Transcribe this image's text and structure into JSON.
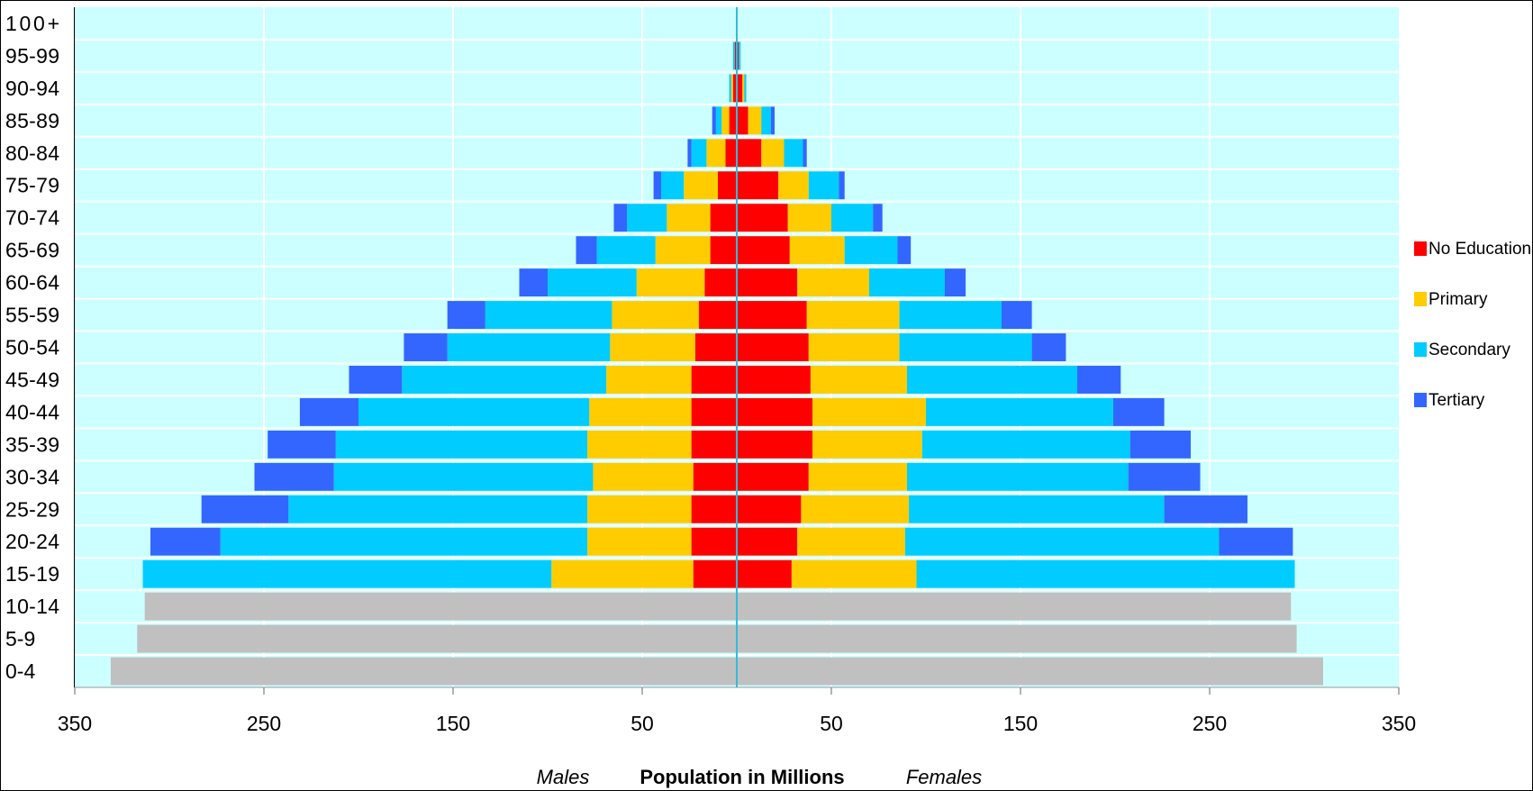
{
  "chart_data": {
    "type": "bar",
    "orientation": "horizontal",
    "variant": "population-pyramid-stacked",
    "categories": [
      "0-4",
      "5-9",
      "10-14",
      "15-19",
      "20-24",
      "25-29",
      "30-34",
      "35-39",
      "40-44",
      "45-49",
      "50-54",
      "55-59",
      "60-64",
      "65-69",
      "70-74",
      "75-79",
      "80-84",
      "85-89",
      "90-94",
      "95-99",
      "100+"
    ],
    "series": [
      {
        "name": "No Education",
        "color": "#ff0000",
        "males": [
          0,
          0,
          0,
          23,
          24,
          24,
          23,
          24,
          24,
          24,
          22,
          20,
          17,
          14,
          14,
          10,
          6,
          4,
          2,
          1,
          0
        ],
        "females": [
          0,
          0,
          0,
          29,
          32,
          34,
          38,
          40,
          40,
          39,
          38,
          37,
          32,
          28,
          27,
          22,
          13,
          6,
          3,
          1,
          0
        ]
      },
      {
        "name": "Primary",
        "color": "#ffcc00",
        "males": [
          0,
          0,
          0,
          75,
          55,
          55,
          53,
          55,
          54,
          45,
          45,
          46,
          36,
          29,
          23,
          18,
          10,
          4,
          1,
          0,
          0
        ],
        "females": [
          0,
          0,
          0,
          66,
          57,
          57,
          52,
          58,
          60,
          51,
          48,
          49,
          38,
          29,
          23,
          16,
          12,
          7,
          1,
          0,
          0
        ]
      },
      {
        "name": "Secondary",
        "color": "#00ccff",
        "males": [
          0,
          0,
          0,
          216,
          194,
          158,
          137,
          133,
          122,
          108,
          86,
          67,
          47,
          31,
          21,
          12,
          8,
          3,
          1,
          1,
          0
        ],
        "females": [
          0,
          0,
          0,
          200,
          166,
          135,
          117,
          110,
          99,
          90,
          70,
          54,
          40,
          28,
          22,
          16,
          10,
          5,
          1,
          1,
          0
        ]
      },
      {
        "name": "Tertiary",
        "color": "#3366ff",
        "males": [
          0,
          0,
          0,
          0,
          37,
          46,
          42,
          36,
          31,
          28,
          23,
          20,
          15,
          11,
          7,
          4,
          2,
          2,
          0,
          0,
          0
        ],
        "females": [
          0,
          0,
          0,
          0,
          39,
          44,
          38,
          32,
          27,
          23,
          18,
          16,
          11,
          7,
          5,
          3,
          2,
          2,
          0,
          0,
          0
        ]
      },
      {
        "name": "",
        "color": "#c0c0c0",
        "males": [
          331,
          317,
          313,
          0,
          0,
          0,
          0,
          0,
          0,
          0,
          0,
          0,
          0,
          0,
          0,
          0,
          0,
          0,
          0,
          0,
          0
        ],
        "females": [
          310,
          296,
          293,
          0,
          0,
          0,
          0,
          0,
          0,
          0,
          0,
          0,
          0,
          0,
          0,
          0,
          0,
          0,
          0,
          0,
          0
        ]
      }
    ],
    "xlim": [
      -350,
      350
    ],
    "xticks": [
      {
        "value": -350,
        "label": "350"
      },
      {
        "value": -250,
        "label": "250"
      },
      {
        "value": -150,
        "label": "150"
      },
      {
        "value": -50,
        "label": "50"
      },
      {
        "value": 50,
        "label": "50"
      },
      {
        "value": 150,
        "label": "150"
      },
      {
        "value": 250,
        "label": "250"
      },
      {
        "value": 350,
        "label": "350"
      }
    ],
    "xlabel": "Population in Millions",
    "left_label": "Males",
    "right_label": "Females",
    "legend": [
      "No Education",
      "Primary",
      "Secondary",
      "Tertiary"
    ],
    "legend_position": "right",
    "plot_background": "#ccffff",
    "grid": true,
    "title": ""
  }
}
